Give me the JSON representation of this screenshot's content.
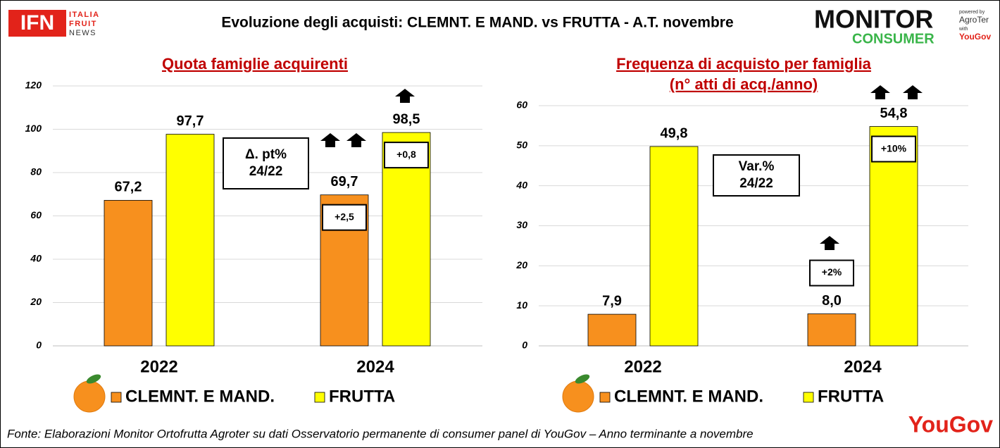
{
  "title": "Evoluzione degli acquisti: CLEMNT. E MAND. vs FRUTTA  - A.T. novembre",
  "logo_left": {
    "mark": "IFN",
    "lines": [
      "ITALIA",
      "FRUIT",
      "NEWS"
    ]
  },
  "logo_right": {
    "top": "MONITOR",
    "bottom": "CONSUMER",
    "small": [
      "powered by",
      "AgroTer",
      "with",
      "YouGov"
    ]
  },
  "footer": "Fonte: Elaborazioni Monitor Ortofrutta Agroter su dati Osservatorio permanente di consumer panel di YouGov  – Anno terminante a novembre",
  "footer_logo": "YouGov",
  "chart_data": [
    {
      "type": "bar",
      "title": "Quota famiglie acquirenti",
      "categories": [
        "2022",
        "2024"
      ],
      "series": [
        {
          "name": "CLEMNT. E MAND.",
          "color": "#f7901e",
          "values": [
            67.2,
            69.7
          ],
          "value_labels": [
            "67,2",
            "69,7"
          ],
          "delta_labels": [
            null,
            "+2,5"
          ]
        },
        {
          "name": "FRUTTA",
          "color": "#ffff00",
          "values": [
            97.7,
            98.5
          ],
          "value_labels": [
            "97,7",
            "98,5"
          ],
          "delta_labels": [
            null,
            "+0,8"
          ]
        }
      ],
      "note": [
        "Δ. pt%",
        "24/22"
      ],
      "ylim": [
        0,
        120
      ],
      "yticks": [
        0,
        20,
        40,
        60,
        80,
        100,
        120
      ],
      "grid": true
    },
    {
      "type": "bar",
      "title": "Frequenza di acquisto per famiglia",
      "subtitle": "(n° atti di acq./anno)",
      "categories": [
        "2022",
        "2024"
      ],
      "series": [
        {
          "name": "CLEMNT. E MAND.",
          "color": "#f7901e",
          "values": [
            7.9,
            8.0
          ],
          "value_labels": [
            "7,9",
            "8,0"
          ],
          "delta_labels": [
            null,
            "+2%"
          ]
        },
        {
          "name": "FRUTTA",
          "color": "#ffff00",
          "values": [
            49.8,
            54.8
          ],
          "value_labels": [
            "49,8",
            "54,8"
          ],
          "delta_labels": [
            null,
            "+10%"
          ]
        }
      ],
      "note": [
        "Var.%",
        "24/22"
      ],
      "ylim": [
        0,
        60
      ],
      "yticks": [
        0,
        10,
        20,
        30,
        40,
        50,
        60
      ],
      "grid": true
    }
  ]
}
